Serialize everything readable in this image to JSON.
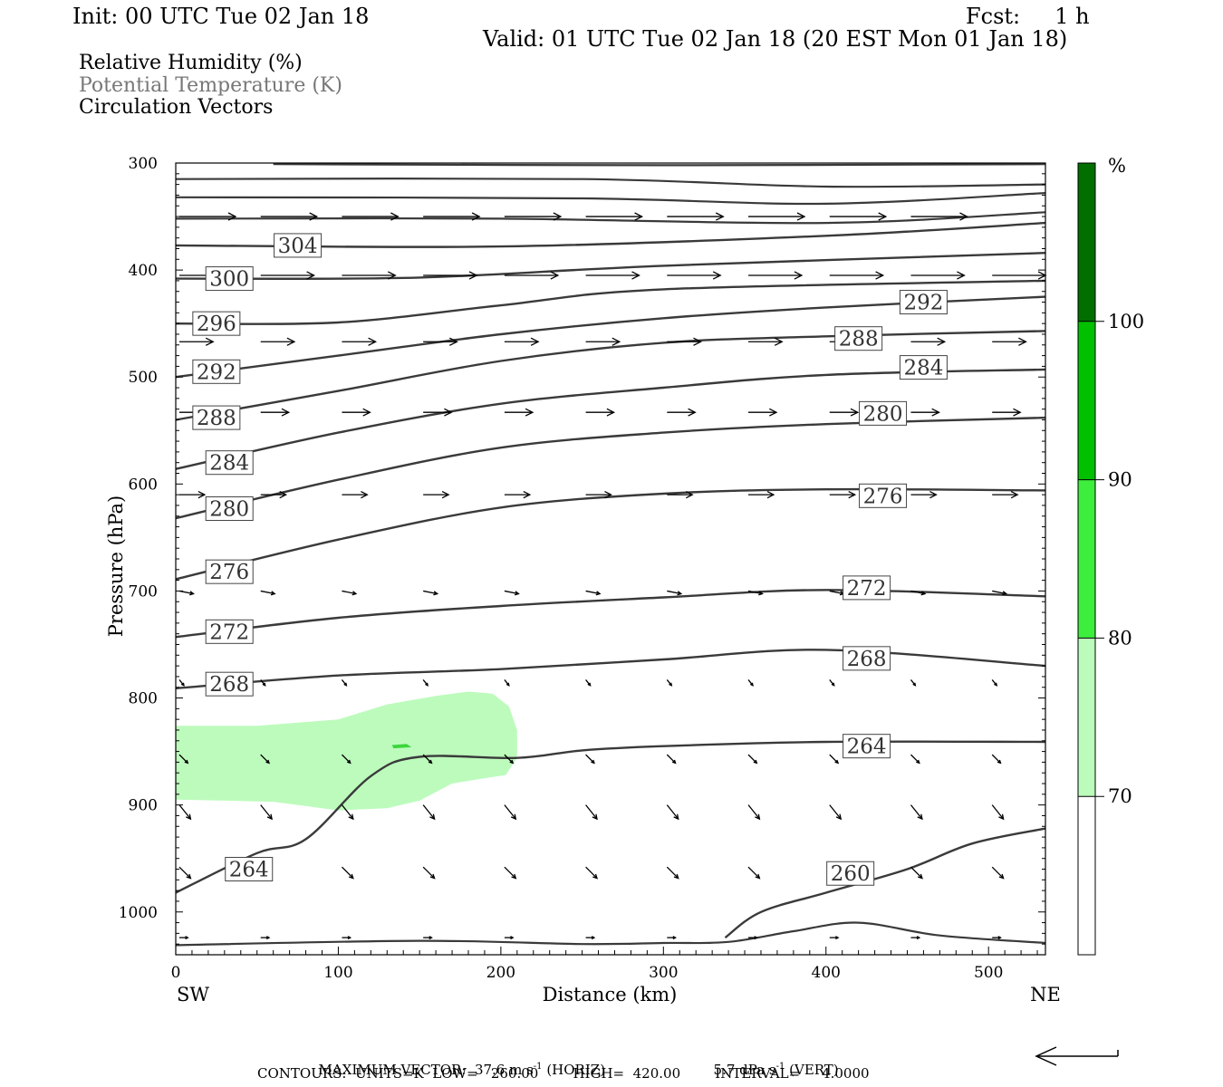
{
  "header": {
    "init": "Init: 00 UTC Tue 02 Jan 18",
    "fcst": "Fcst:     1 h",
    "valid": "Valid: 01 UTC Tue 02 Jan 18 (20 EST Mon 01 Jan 18)"
  },
  "fields": {
    "rh": "Relative Humidity (%)",
    "theta": "Potential Temperature (K)",
    "vectors": "Circulation Vectors"
  },
  "footer": {
    "max_vector_label": "MAXIMUM VECTOR:",
    "horiz_value": "37.6 m s",
    "horiz_exp": "-1",
    "horiz_tag": "(HORIZ)",
    "vert_value": "5.7 dPa s",
    "vert_exp": "-1",
    "vert_tag": "(VERT)",
    "contours": "CONTOURS:  UNITS=K  LOW=   260.00        HIGH=  420.00        INTERVAL=     4.0000"
  },
  "colors": {
    "contour": "#3a3a3a",
    "rh_70": "#bbfbbb",
    "rh_80": "#3dee3d",
    "rh_90": "#00c000",
    "rh_100": "#006f00",
    "rh_fill": "#bdfbbd",
    "rh_core": "#3cd63c"
  },
  "chart_data": {
    "type": "cross-section",
    "x_axis": {
      "label": "Distance (km)",
      "range": [
        0,
        535
      ],
      "ticks": [
        0,
        100,
        200,
        300,
        400,
        500
      ],
      "left_end": "SW",
      "right_end": "NE"
    },
    "y_axis": {
      "label": "Pressure (hPa)",
      "range": [
        300,
        1040
      ],
      "ticks": [
        300,
        400,
        500,
        600,
        700,
        800,
        900,
        1000
      ],
      "inverted": true
    },
    "colorbar": {
      "unit": "%",
      "levels": [
        70,
        80,
        90,
        100
      ]
    },
    "rh_region_ge_70": [
      [
        0,
        826
      ],
      [
        50,
        826
      ],
      [
        100,
        820
      ],
      [
        130,
        806
      ],
      [
        160,
        798
      ],
      [
        180,
        794
      ],
      [
        195,
        796
      ],
      [
        205,
        808
      ],
      [
        210,
        830
      ],
      [
        210,
        856
      ],
      [
        203,
        872
      ],
      [
        190,
        875
      ],
      [
        170,
        880
      ],
      [
        150,
        896
      ],
      [
        130,
        903
      ],
      [
        100,
        905
      ],
      [
        60,
        897
      ],
      [
        0,
        895
      ]
    ],
    "rh_region_ge_80": [
      [
        133,
        844
      ],
      [
        142,
        843
      ],
      [
        145,
        846
      ],
      [
        134,
        847
      ]
    ],
    "isentropes": [
      {
        "value": 304,
        "label_x": 75,
        "label_p": 377,
        "points": [
          [
            0,
            377
          ],
          [
            200,
            378
          ],
          [
            400,
            368
          ],
          [
            535,
            356
          ]
        ]
      },
      {
        "value": 300,
        "label_x": 33,
        "label_p": 408,
        "points": [
          [
            0,
            408
          ],
          [
            150,
            407
          ],
          [
            300,
            396
          ],
          [
            535,
            384
          ]
        ]
      },
      {
        "value": 296,
        "label_x": 25,
        "label_p": 450,
        "points": [
          [
            0,
            450
          ],
          [
            100,
            449
          ],
          [
            200,
            433
          ],
          [
            300,
            418
          ],
          [
            535,
            410
          ]
        ]
      },
      {
        "value": 292,
        "label_x": 25,
        "label_p": 495,
        "points": [
          [
            0,
            500
          ],
          [
            100,
            480
          ],
          [
            200,
            460
          ],
          [
            300,
            445
          ],
          [
            400,
            435
          ],
          [
            535,
            425
          ]
        ]
      },
      {
        "value": 288,
        "label_x": 25,
        "label_p": 538,
        "points": [
          [
            0,
            540
          ],
          [
            100,
            513
          ],
          [
            200,
            485
          ],
          [
            300,
            468
          ],
          [
            400,
            462
          ],
          [
            535,
            457
          ]
        ]
      },
      {
        "value": 284,
        "label_x": 33,
        "label_p": 580,
        "points": [
          [
            0,
            586
          ],
          [
            100,
            552
          ],
          [
            200,
            525
          ],
          [
            300,
            510
          ],
          [
            400,
            498
          ],
          [
            535,
            493
          ]
        ]
      },
      {
        "value": 280,
        "label_x": 33,
        "label_p": 623,
        "points": [
          [
            0,
            632
          ],
          [
            100,
            596
          ],
          [
            200,
            566
          ],
          [
            300,
            552
          ],
          [
            400,
            544
          ],
          [
            535,
            538
          ]
        ]
      },
      {
        "value": 276,
        "label_x": 33,
        "label_p": 682,
        "points": [
          [
            0,
            689
          ],
          [
            100,
            652
          ],
          [
            200,
            622
          ],
          [
            300,
            609
          ],
          [
            400,
            605
          ],
          [
            535,
            606
          ]
        ]
      },
      {
        "value": 272,
        "label_x": 33,
        "label_p": 738,
        "points": [
          [
            0,
            743
          ],
          [
            100,
            725
          ],
          [
            200,
            714
          ],
          [
            300,
            706
          ],
          [
            400,
            699
          ],
          [
            535,
            705
          ]
        ]
      },
      {
        "value": 268,
        "label_x": 33,
        "label_p": 787,
        "points": [
          [
            0,
            791
          ],
          [
            100,
            779
          ],
          [
            200,
            773
          ],
          [
            300,
            764
          ],
          [
            400,
            755
          ],
          [
            535,
            770
          ]
        ]
      },
      {
        "value": 264,
        "label_x": 45,
        "label_p": 960,
        "points": [
          [
            0,
            982
          ],
          [
            50,
            945
          ],
          [
            80,
            932
          ],
          [
            120,
            873
          ],
          [
            150,
            855
          ],
          [
            210,
            856
          ],
          [
            250,
            849
          ],
          [
            300,
            845
          ],
          [
            400,
            841
          ],
          [
            535,
            841
          ]
        ]
      },
      {
        "value": 260,
        "label_x": 415,
        "label_p": 964,
        "points": [
          [
            338,
            1024
          ],
          [
            360,
            1000
          ],
          [
            400,
            982
          ],
          [
            450,
            960
          ],
          [
            490,
            936
          ],
          [
            535,
            922
          ]
        ]
      }
    ],
    "labels_right": [
      {
        "value": 292,
        "x": 460,
        "p": 430
      },
      {
        "value": 288,
        "x": 420,
        "p": 464
      },
      {
        "value": 284,
        "x": 460,
        "p": 491
      },
      {
        "value": 280,
        "x": 435,
        "p": 534
      },
      {
        "value": 276,
        "x": 435,
        "p": 611
      },
      {
        "value": 272,
        "x": 425,
        "p": 697
      },
      {
        "value": 268,
        "x": 425,
        "p": 763
      },
      {
        "value": 264,
        "x": 425,
        "p": 845
      }
    ],
    "vectors": [
      {
        "p": 350,
        "u": 1.0,
        "w": 0.0
      },
      {
        "p": 405,
        "u": 0.95,
        "w": 0.0
      },
      {
        "p": 467,
        "u": 0.6,
        "w": 0.0
      },
      {
        "p": 533,
        "u": 0.5,
        "w": 0.0
      },
      {
        "p": 610,
        "u": 0.45,
        "w": 0.0
      },
      {
        "p": 700,
        "u": 0.25,
        "w": 0.05
      },
      {
        "p": 783,
        "u": 0.08,
        "w": 0.1
      },
      {
        "p": 853,
        "u": 0.15,
        "w": 0.15
      },
      {
        "p": 900,
        "u": 0.2,
        "w": 0.25
      },
      {
        "p": 958,
        "u": 0.2,
        "w": 0.2
      },
      {
        "p": 1024,
        "u": 0.15,
        "w": 0.0
      }
    ]
  }
}
